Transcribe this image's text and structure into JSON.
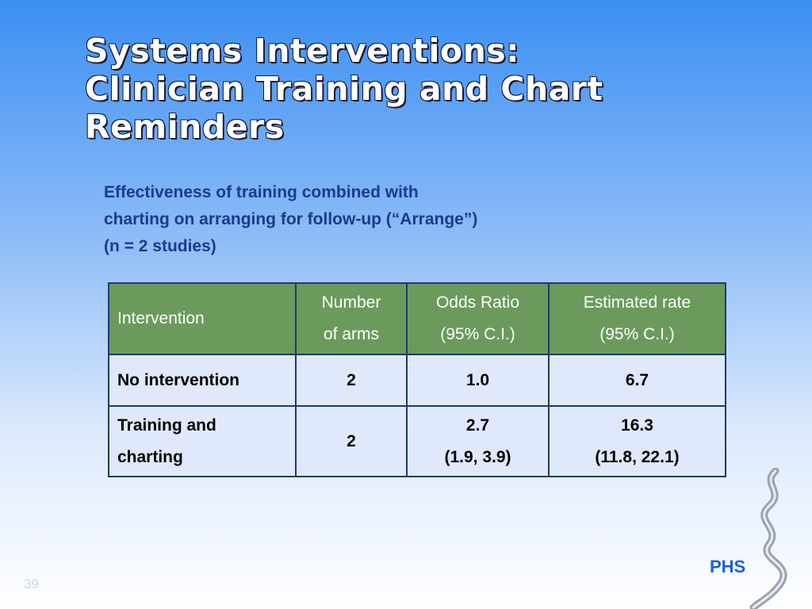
{
  "title": "Systems Interventions: Clinician Training and Chart Reminders",
  "subtitle": [
    "Effectiveness of training combined with",
    "charting on arranging for follow-up (“Arrange”)",
    "(n = 2 studies)"
  ],
  "table": {
    "header": [
      [
        "Intervention"
      ],
      [
        "Number",
        "of arms"
      ],
      [
        "Odds Ratio",
        "(95% C.I.)"
      ],
      [
        "Estimated rate",
        "(95% C.I.)"
      ]
    ],
    "rows": [
      [
        [
          "No intervention"
        ],
        [
          "2"
        ],
        [
          "1.0"
        ],
        [
          "6.7"
        ]
      ],
      [
        [
          "Training and",
          "charting"
        ],
        [
          "2"
        ],
        [
          "2.7",
          "(1.9, 3.9)"
        ],
        [
          "16.3",
          "(11.8, 22.1)"
        ]
      ]
    ]
  },
  "logo": "PHS",
  "page_number": "39"
}
